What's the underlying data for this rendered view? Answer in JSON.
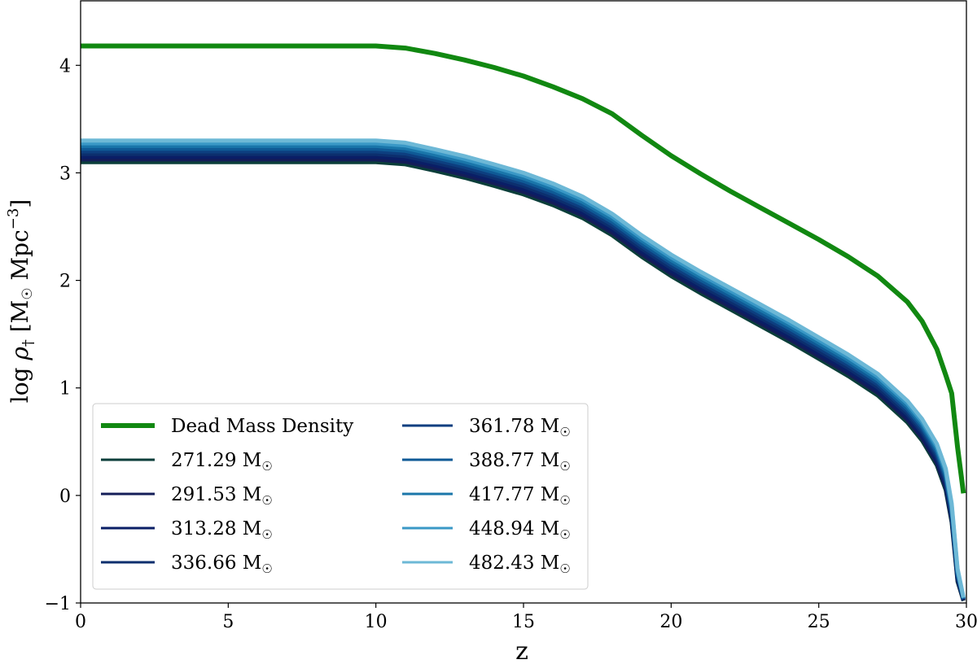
{
  "chart_data": {
    "type": "line",
    "title": "",
    "xlabel": "z",
    "ylabel": {
      "prefix": "log ",
      "rho": "ρ",
      "sub": "†",
      "unit_open": " [M",
      "sun": "☉",
      "unit_mid": " Mpc",
      "exp": "−3",
      "unit_close": "]"
    },
    "xlim": [
      0,
      30
    ],
    "ylim": [
      -1,
      4.6
    ],
    "xticks": [
      0,
      5,
      10,
      15,
      20,
      25,
      30
    ],
    "yticks": [
      -1,
      0,
      1,
      2,
      3,
      4
    ],
    "xtick_labels": [
      "0",
      "5",
      "10",
      "15",
      "20",
      "25",
      "30"
    ],
    "ytick_labels": [
      "−1",
      "0",
      "1",
      "2",
      "3",
      "4"
    ],
    "grid": false,
    "legend_position": "lower-left",
    "legend_columns": 2,
    "x": [
      0,
      10,
      11,
      12,
      13,
      14,
      15,
      16,
      17,
      18,
      19,
      20,
      21,
      22,
      23,
      24,
      25,
      26,
      27,
      28,
      28.5,
      29,
      29.3,
      29.5,
      29.7,
      29.9
    ],
    "dead_mass": {
      "name": "Dead Mass Density",
      "color": "#118811",
      "x": [
        0,
        10,
        11,
        12,
        13,
        14,
        15,
        16,
        17,
        18,
        19,
        20,
        21,
        22,
        23,
        24,
        25,
        26,
        27,
        28,
        28.5,
        29,
        29.3,
        29.5,
        29.7,
        29.9
      ],
      "values": [
        4.18,
        4.18,
        4.16,
        4.11,
        4.05,
        3.98,
        3.9,
        3.8,
        3.69,
        3.55,
        3.35,
        3.16,
        2.99,
        2.83,
        2.68,
        2.53,
        2.38,
        2.22,
        2.04,
        1.8,
        1.62,
        1.36,
        1.12,
        0.95,
        0.45,
        0.02
      ]
    },
    "series": [
      {
        "name": "271.29",
        "unit": " M",
        "color": "#0b3e3a",
        "values": [
          3.1,
          3.1,
          3.08,
          3.02,
          2.955,
          2.88,
          2.8,
          2.7,
          2.58,
          2.42,
          2.22,
          2.04,
          1.88,
          1.73,
          1.58,
          1.43,
          1.27,
          1.11,
          0.93,
          0.68,
          0.51,
          0.28,
          0.05,
          -0.25,
          -0.8,
          -0.98
        ]
      },
      {
        "name": "291.53",
        "unit": " M",
        "color": "#141d58",
        "values": [
          3.125,
          3.125,
          3.105,
          3.045,
          2.98,
          2.905,
          2.825,
          2.725,
          2.605,
          2.445,
          2.245,
          2.065,
          1.905,
          1.755,
          1.605,
          1.455,
          1.295,
          1.135,
          0.955,
          0.705,
          0.535,
          0.305,
          0.075,
          -0.228,
          -0.785,
          -0.976
        ]
      },
      {
        "name": "313.28",
        "unit": " M",
        "color": "#0a1e66",
        "values": [
          3.15,
          3.15,
          3.13,
          3.07,
          3.005,
          2.93,
          2.85,
          2.75,
          2.63,
          2.47,
          2.27,
          2.09,
          1.93,
          1.78,
          1.63,
          1.48,
          1.32,
          1.16,
          0.98,
          0.73,
          0.56,
          0.33,
          0.1,
          -0.206,
          -0.77,
          -0.972
        ]
      },
      {
        "name": "336.66",
        "unit": " M",
        "color": "#0c2f6e",
        "values": [
          3.175,
          3.175,
          3.155,
          3.095,
          3.03,
          2.955,
          2.875,
          2.775,
          2.655,
          2.495,
          2.295,
          2.115,
          1.955,
          1.805,
          1.655,
          1.505,
          1.345,
          1.185,
          1.005,
          0.755,
          0.585,
          0.355,
          0.125,
          -0.184,
          -0.755,
          -0.968
        ]
      },
      {
        "name": "361.78",
        "unit": " M",
        "color": "#0d3f80",
        "values": [
          3.2,
          3.2,
          3.18,
          3.12,
          3.055,
          2.98,
          2.9,
          2.8,
          2.68,
          2.52,
          2.32,
          2.14,
          1.98,
          1.83,
          1.68,
          1.53,
          1.37,
          1.21,
          1.03,
          0.78,
          0.61,
          0.38,
          0.15,
          -0.162,
          -0.74,
          -0.964
        ]
      },
      {
        "name": "388.77",
        "unit": " M",
        "color": "#0f5a96",
        "values": [
          3.225,
          3.225,
          3.205,
          3.145,
          3.08,
          3.005,
          2.925,
          2.825,
          2.705,
          2.545,
          2.345,
          2.165,
          2.005,
          1.855,
          1.705,
          1.555,
          1.395,
          1.235,
          1.055,
          0.805,
          0.635,
          0.405,
          0.175,
          -0.14,
          -0.725,
          -0.96
        ]
      },
      {
        "name": "417.77",
        "unit": " M",
        "color": "#1a76aa",
        "values": [
          3.25,
          3.25,
          3.23,
          3.17,
          3.105,
          3.03,
          2.95,
          2.85,
          2.73,
          2.57,
          2.37,
          2.19,
          2.03,
          1.88,
          1.73,
          1.58,
          1.42,
          1.26,
          1.08,
          0.83,
          0.66,
          0.43,
          0.2,
          -0.118,
          -0.71,
          -0.956
        ]
      },
      {
        "name": "448.94",
        "unit": " M",
        "color": "#3a98c6",
        "values": [
          3.275,
          3.275,
          3.255,
          3.195,
          3.13,
          3.055,
          2.975,
          2.875,
          2.755,
          2.595,
          2.395,
          2.215,
          2.055,
          1.905,
          1.755,
          1.605,
          1.445,
          1.285,
          1.105,
          0.855,
          0.685,
          0.455,
          0.225,
          -0.096,
          -0.695,
          -0.952
        ]
      },
      {
        "name": "482.43",
        "unit": " M",
        "color": "#6db8d6",
        "values": [
          3.3,
          3.3,
          3.28,
          3.22,
          3.155,
          3.08,
          3.0,
          2.9,
          2.78,
          2.62,
          2.42,
          2.24,
          2.08,
          1.93,
          1.78,
          1.63,
          1.47,
          1.31,
          1.13,
          0.88,
          0.71,
          0.48,
          0.25,
          -0.074,
          -0.68,
          -0.948
        ]
      }
    ]
  }
}
